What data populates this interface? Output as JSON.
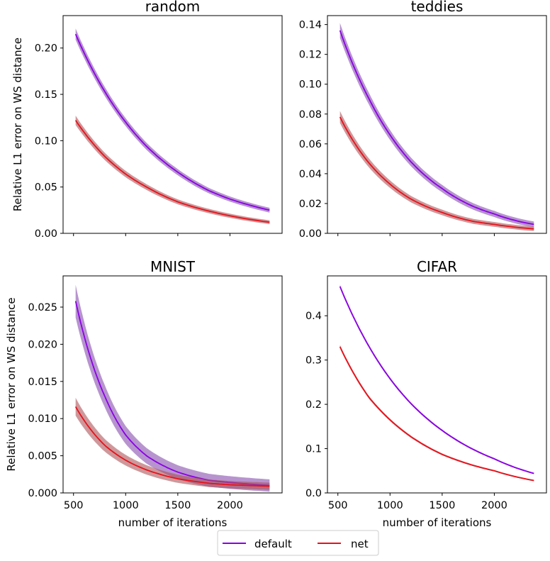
{
  "figure": {
    "legend": {
      "placement": "bottom-center",
      "entries": [
        {
          "label": "default",
          "color": "#8b00e6"
        },
        {
          "label": "net",
          "color": "#e8111a"
        }
      ]
    },
    "band_color": "#808080"
  },
  "chart_data": [
    {
      "type": "line",
      "title": "random",
      "xlabel": "",
      "ylabel": "Relative L1 error on WS distance",
      "xlim": [
        400,
        2500
      ],
      "ylim": [
        0,
        0.235
      ],
      "xticks": [
        500,
        1000,
        1500,
        2000
      ],
      "show_xticklabels": false,
      "yticks": [
        0.0,
        0.05,
        0.1,
        0.15,
        0.2
      ],
      "yticklabels": [
        "0.00",
        "0.05",
        "0.10",
        "0.15",
        "0.20"
      ],
      "x": [
        520,
        800,
        1000,
        1200,
        1500,
        1800,
        2000,
        2380
      ],
      "series": [
        {
          "name": "default",
          "values": [
            0.215,
            0.153,
            0.12,
            0.094,
            0.066,
            0.046,
            0.037,
            0.025
          ],
          "band": 0.006
        },
        {
          "name": "net",
          "values": [
            0.122,
            0.083,
            0.064,
            0.05,
            0.034,
            0.024,
            0.019,
            0.012
          ],
          "band": 0.005
        }
      ]
    },
    {
      "type": "line",
      "title": "teddies",
      "xlabel": "",
      "ylabel": "",
      "xlim": [
        400,
        2500
      ],
      "ylim": [
        0,
        0.146
      ],
      "xticks": [
        500,
        1000,
        1500,
        2000
      ],
      "show_xticklabels": false,
      "yticks": [
        0.0,
        0.02,
        0.04,
        0.06,
        0.08,
        0.1,
        0.12,
        0.14
      ],
      "yticklabels": [
        "0.00",
        "0.02",
        "0.04",
        "0.06",
        "0.08",
        "0.10",
        "0.12",
        "0.14"
      ],
      "x": [
        520,
        800,
        1000,
        1200,
        1500,
        1800,
        2000,
        2380
      ],
      "series": [
        {
          "name": "default",
          "values": [
            0.136,
            0.09,
            0.066,
            0.048,
            0.03,
            0.018,
            0.013,
            0.006
          ],
          "band": 0.005
        },
        {
          "name": "net",
          "values": [
            0.078,
            0.047,
            0.033,
            0.023,
            0.014,
            0.008,
            0.006,
            0.003
          ],
          "band": 0.004
        }
      ]
    },
    {
      "type": "line",
      "title": "MNIST",
      "xlabel": "number of iterations",
      "ylabel": "Relative L1 error on WS distance",
      "xlim": [
        400,
        2500
      ],
      "ylim": [
        0,
        0.0292
      ],
      "xticks": [
        500,
        1000,
        1500,
        2000
      ],
      "show_xticklabels": true,
      "xticklabels": [
        "500",
        "1000",
        "1500",
        "2000"
      ],
      "yticks": [
        0.0,
        0.005,
        0.01,
        0.015,
        0.02,
        0.025
      ],
      "yticklabels": [
        "0.000",
        "0.005",
        "0.010",
        "0.015",
        "0.020",
        "0.025"
      ],
      "x": [
        520,
        800,
        1000,
        1200,
        1500,
        1800,
        2000,
        2380
      ],
      "series": [
        {
          "name": "default",
          "values": [
            0.0258,
            0.013,
            0.0078,
            0.005,
            0.0028,
            0.0017,
            0.0014,
            0.001
          ],
          "band": 0.0022
        },
        {
          "name": "net",
          "values": [
            0.0116,
            0.0064,
            0.0044,
            0.0031,
            0.0019,
            0.0013,
            0.0011,
            0.0009
          ],
          "band": 0.0012
        }
      ]
    },
    {
      "type": "line",
      "title": "CIFAR",
      "xlabel": "number of iterations",
      "ylabel": "",
      "xlim": [
        400,
        2500
      ],
      "ylim": [
        0,
        0.49
      ],
      "xticks": [
        500,
        1000,
        1500,
        2000
      ],
      "show_xticklabels": true,
      "xticklabels": [
        "500",
        "1000",
        "1500",
        "2000"
      ],
      "yticks": [
        0.0,
        0.1,
        0.2,
        0.3,
        0.4
      ],
      "yticklabels": [
        "0.0",
        "0.1",
        "0.2",
        "0.3",
        "0.4"
      ],
      "x": [
        520,
        800,
        1000,
        1200,
        1500,
        1800,
        2000,
        2380
      ],
      "series": [
        {
          "name": "default",
          "values": [
            0.466,
            0.33,
            0.258,
            0.202,
            0.141,
            0.098,
            0.077,
            0.044
          ],
          "band": 0.004
        },
        {
          "name": "net",
          "values": [
            0.33,
            0.215,
            0.165,
            0.127,
            0.087,
            0.062,
            0.05,
            0.028
          ],
          "band": 0.004
        }
      ]
    }
  ]
}
